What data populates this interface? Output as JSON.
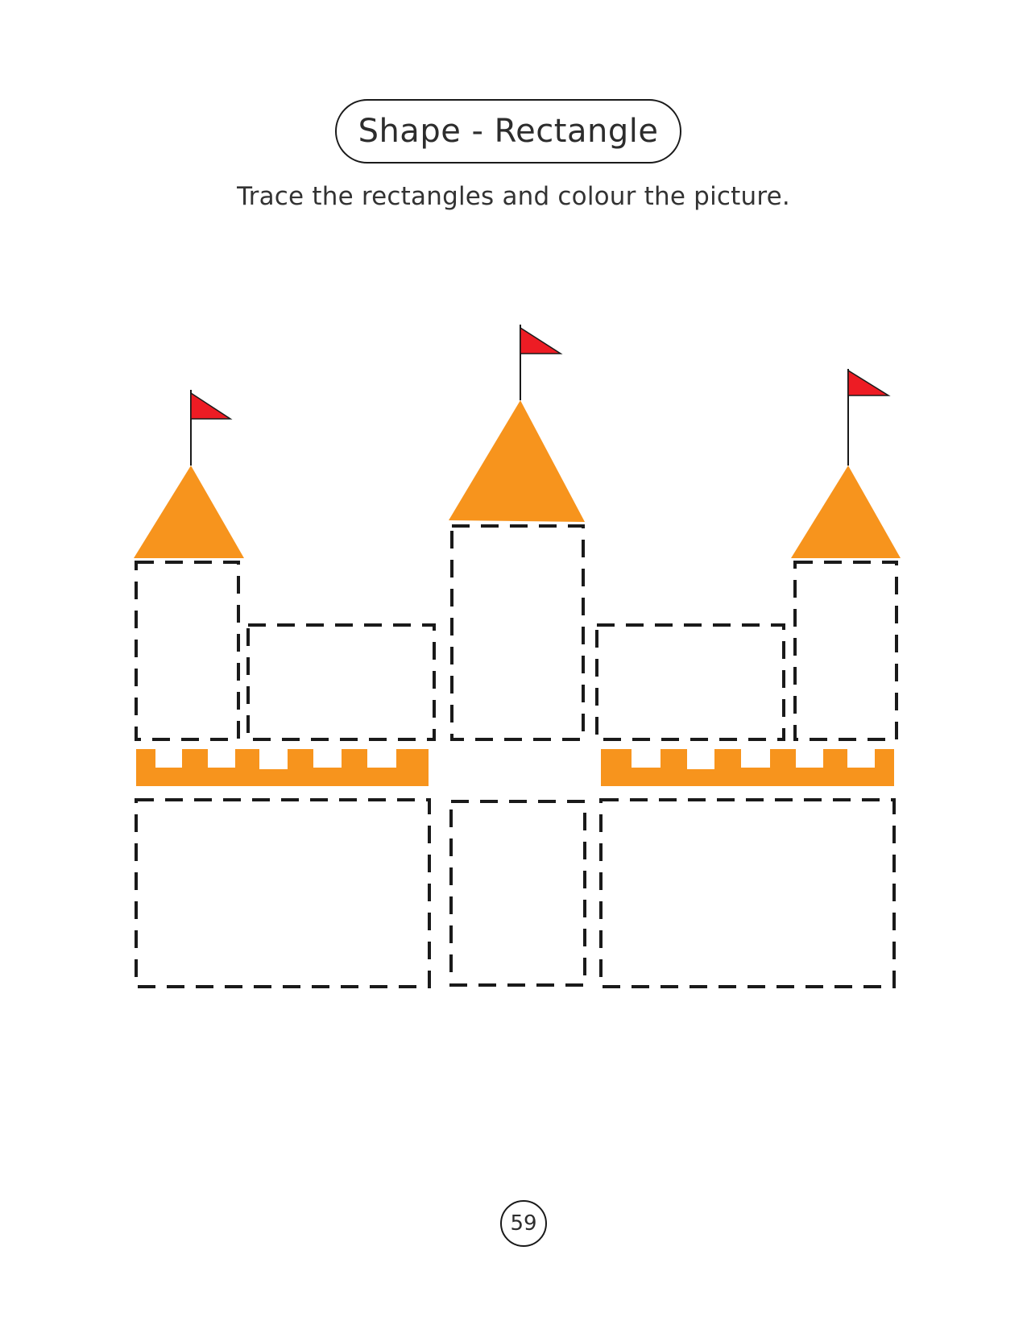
{
  "worksheet": {
    "title": "Shape - Rectangle",
    "instructions": "Trace the rectangles and colour the picture.",
    "page_number": "59"
  },
  "colors": {
    "roof": "#F7941D",
    "battlement": "#F7941D",
    "flag": "#ED1C24",
    "outline": "#1a1a1a"
  }
}
